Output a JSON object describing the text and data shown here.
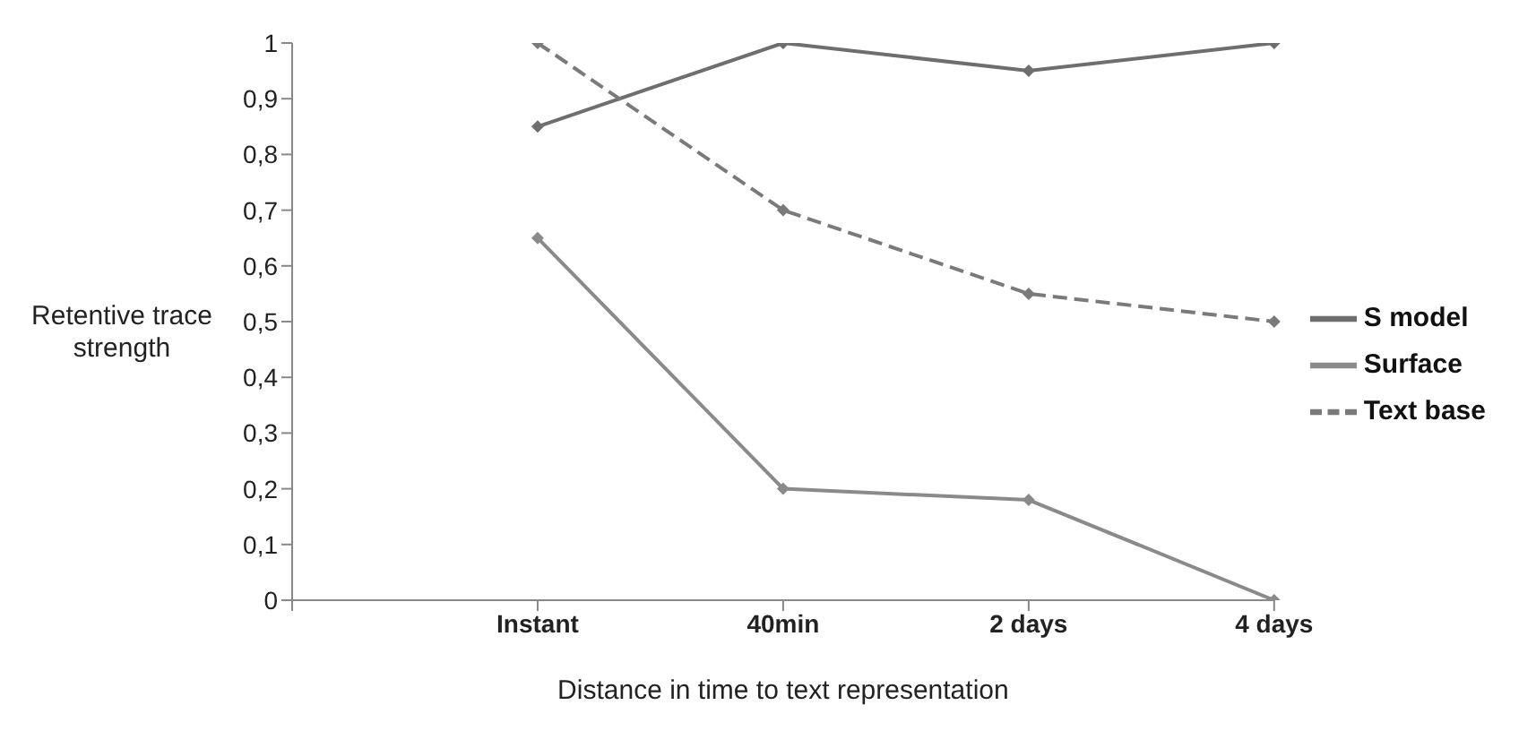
{
  "chart_data": {
    "type": "line",
    "xlabel": "Distance in time to text representation",
    "ylabel": "Retentive trace strength",
    "categories": [
      null,
      "Instant",
      "40min",
      "2 days",
      "4 days"
    ],
    "series": [
      {
        "name": "S model",
        "color": "#6e6e6e",
        "values": [
          null,
          0.85,
          1,
          0.95,
          1
        ],
        "line_style": "solid"
      },
      {
        "name": "Text base",
        "color": "#7a7a7a",
        "values": [
          null,
          1,
          0.7,
          0.55,
          0.5
        ],
        "line_style": "dashed"
      },
      {
        "name": "Surface",
        "color": "#8a8a8a",
        "values": [
          null,
          0.65,
          0.2,
          0.18,
          0
        ],
        "line_style": "solid"
      }
    ],
    "ylim": [
      0,
      1
    ],
    "yticks": [
      {
        "value": 0,
        "label": "0"
      },
      {
        "value": 0.1,
        "label": "0,1"
      },
      {
        "value": 0.2,
        "label": "0,2"
      },
      {
        "value": 0.3,
        "label": "0,3"
      },
      {
        "value": 0.4,
        "label": "0,4"
      },
      {
        "value": 0.5,
        "label": "0,5"
      },
      {
        "value": 0.6,
        "label": "0,6"
      },
      {
        "value": 0.7,
        "label": "0,7"
      },
      {
        "value": 0.8,
        "label": "0,8"
      },
      {
        "value": 0.9,
        "label": "0,9"
      },
      {
        "value": 1,
        "label": "1"
      }
    ],
    "grid": false,
    "legend": "right",
    "marker": "diamond"
  }
}
